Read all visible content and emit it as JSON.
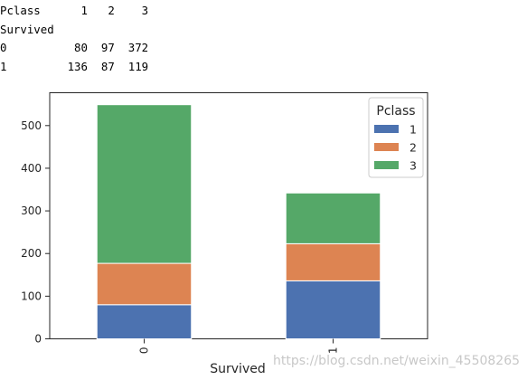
{
  "crosstab": {
    "column_header": "Pclass",
    "row_header": "Survived",
    "columns": [
      "1",
      "2",
      "3"
    ],
    "rows": [
      {
        "label": "0",
        "values": [
          "80",
          "97",
          "372"
        ]
      },
      {
        "label": "1",
        "values": [
          "136",
          "87",
          "119"
        ]
      }
    ]
  },
  "chart_data": {
    "type": "bar",
    "stacked": true,
    "categories": [
      "0",
      "1"
    ],
    "series": [
      {
        "name": "1",
        "values": [
          80,
          136
        ],
        "color": "#4c72b0"
      },
      {
        "name": "2",
        "values": [
          97,
          87
        ],
        "color": "#dd8452"
      },
      {
        "name": "3",
        "values": [
          372,
          119
        ],
        "color": "#55a868"
      }
    ],
    "title": "",
    "xlabel": "Survived",
    "ylabel": "",
    "ylim": [
      0,
      577
    ],
    "yticks": [
      0,
      100,
      200,
      300,
      400,
      500
    ],
    "legend_title": "Pclass",
    "legend_position": "top-right",
    "grid": false
  },
  "watermark": "https://blog.csdn.net/weixin_45508265"
}
